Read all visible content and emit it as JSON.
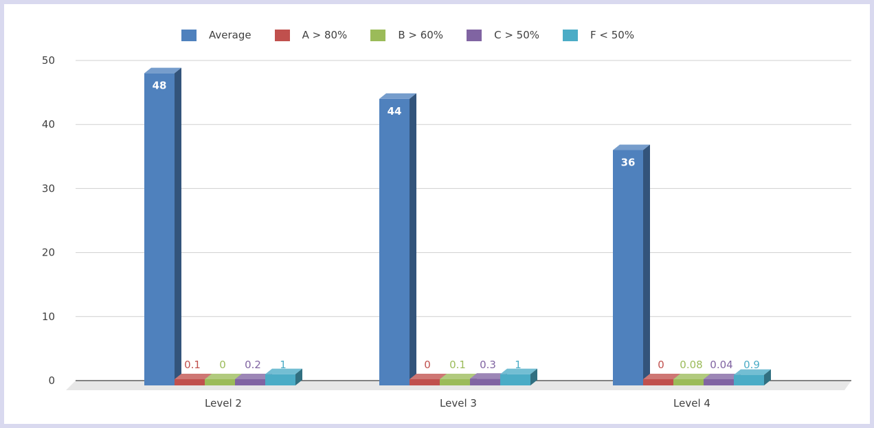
{
  "chart_data": {
    "type": "bar",
    "title": "",
    "xlabel": "",
    "ylabel": "",
    "categories": [
      "Level 2",
      "Level 3",
      "Level 4"
    ],
    "ylim": [
      0,
      50
    ],
    "yticks": [
      0,
      10,
      20,
      30,
      40,
      50
    ],
    "grid": true,
    "legend_position": "top",
    "series": [
      {
        "name": "Average",
        "color": "#4f81bd",
        "values": [
          48,
          44,
          36
        ],
        "labels": [
          "48",
          "44",
          "36"
        ]
      },
      {
        "name": "A > 80%",
        "color": "#c0504d",
        "values": [
          0.1,
          0,
          0
        ],
        "labels": [
          "0.1",
          "0",
          "0"
        ]
      },
      {
        "name": "B > 60%",
        "color": "#9bbb59",
        "values": [
          0,
          0.1,
          0.08
        ],
        "labels": [
          "0",
          "0.1",
          "0.08"
        ]
      },
      {
        "name": "C > 50%",
        "color": "#8064a2",
        "values": [
          0.2,
          0.3,
          0.04
        ],
        "labels": [
          "0.2",
          "0.3",
          "0.04"
        ]
      },
      {
        "name": "F < 50%",
        "color": "#4bacc6",
        "values": [
          1,
          1,
          0.9
        ],
        "labels": [
          "1",
          "1",
          "0.9"
        ]
      }
    ]
  }
}
